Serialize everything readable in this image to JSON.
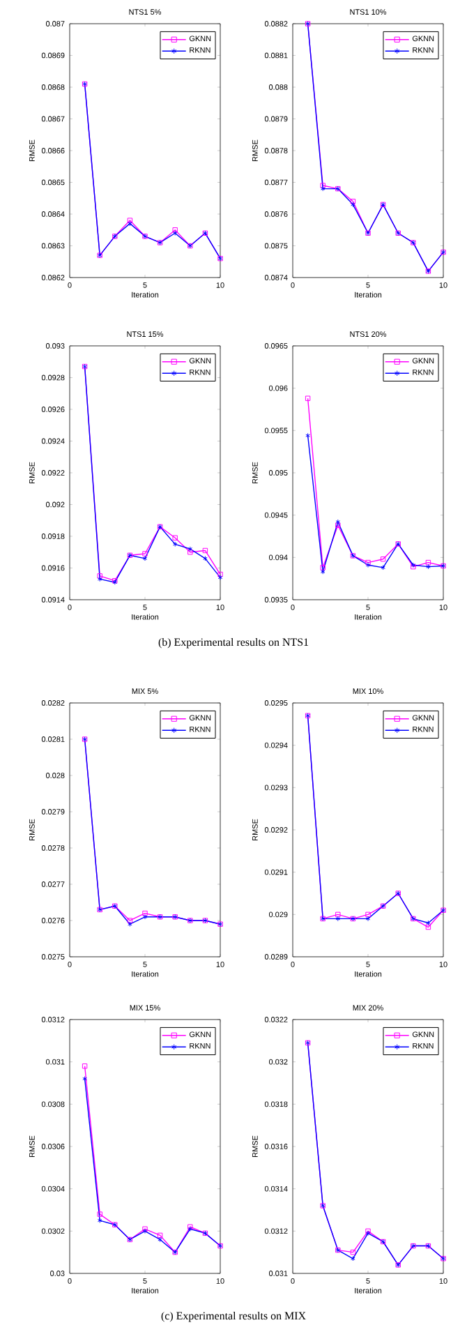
{
  "chart_data": [
    {
      "type": "line",
      "title": "NTS1 5%",
      "xlabel": "Iteration",
      "ylabel": "RMSE",
      "x": [
        1,
        2,
        3,
        4,
        5,
        6,
        7,
        8,
        9,
        10
      ],
      "xlim": [
        0,
        10
      ],
      "xticks": [
        0,
        5,
        10
      ],
      "ylim": [
        0.0862,
        0.087
      ],
      "yticks": [
        0.0862,
        0.0863,
        0.0864,
        0.0865,
        0.0866,
        0.0867,
        0.0868,
        0.0869,
        0.087
      ],
      "legend": "top right",
      "series": [
        {
          "name": "GKNN",
          "color": "#ff00ff",
          "marker": "square",
          "values": [
            0.08681,
            0.08627,
            0.08633,
            0.08638,
            0.08633,
            0.08631,
            0.08635,
            0.0863,
            0.08634,
            0.08626
          ]
        },
        {
          "name": "RKNN",
          "color": "#0000ff",
          "marker": "cross",
          "values": [
            0.08681,
            0.08627,
            0.08633,
            0.08637,
            0.08633,
            0.08631,
            0.08634,
            0.0863,
            0.08634,
            0.08626
          ]
        }
      ]
    },
    {
      "type": "line",
      "title": "NTS1 10%",
      "xlabel": "Iteration",
      "ylabel": "RMSE",
      "x": [
        1,
        2,
        3,
        4,
        5,
        6,
        7,
        8,
        9,
        10
      ],
      "xlim": [
        0,
        10
      ],
      "xticks": [
        0,
        5,
        10
      ],
      "ylim": [
        0.0874,
        0.0882
      ],
      "yticks": [
        0.0874,
        0.0875,
        0.0876,
        0.0877,
        0.0878,
        0.0879,
        0.088,
        0.0881,
        0.0882
      ],
      "legend": "top right",
      "series": [
        {
          "name": "GKNN",
          "color": "#ff00ff",
          "marker": "square",
          "values": [
            0.0882,
            0.08769,
            0.08768,
            0.08764,
            0.08754,
            0.08763,
            0.08754,
            0.08751,
            0.08742,
            0.08748
          ]
        },
        {
          "name": "RKNN",
          "color": "#0000ff",
          "marker": "cross",
          "values": [
            0.0882,
            0.08768,
            0.08768,
            0.08763,
            0.08754,
            0.08763,
            0.08754,
            0.08751,
            0.08742,
            0.08748
          ]
        }
      ]
    },
    {
      "type": "line",
      "title": "NTS1 15%",
      "xlabel": "Iteration",
      "ylabel": "RMSE",
      "x": [
        1,
        2,
        3,
        4,
        5,
        6,
        7,
        8,
        9,
        10
      ],
      "xlim": [
        0,
        10
      ],
      "xticks": [
        0,
        5,
        10
      ],
      "ylim": [
        0.0914,
        0.093
      ],
      "yticks": [
        0.0914,
        0.0916,
        0.0918,
        0.092,
        0.0922,
        0.0924,
        0.0926,
        0.0928,
        0.093
      ],
      "legend": "top right",
      "series": [
        {
          "name": "GKNN",
          "color": "#ff00ff",
          "marker": "square",
          "values": [
            0.09287,
            0.09155,
            0.09152,
            0.09168,
            0.09169,
            0.09186,
            0.09179,
            0.0917,
            0.09171,
            0.09156
          ]
        },
        {
          "name": "RKNN",
          "color": "#0000ff",
          "marker": "cross",
          "values": [
            0.09287,
            0.09153,
            0.09151,
            0.09168,
            0.09166,
            0.09186,
            0.09175,
            0.09172,
            0.09166,
            0.09154
          ]
        }
      ]
    },
    {
      "type": "line",
      "title": "NTS1 20%",
      "xlabel": "Iteration",
      "ylabel": "RMSE",
      "x": [
        1,
        2,
        3,
        4,
        5,
        6,
        7,
        8,
        9,
        10
      ],
      "xlim": [
        0,
        10
      ],
      "xticks": [
        0,
        5,
        10
      ],
      "ylim": [
        0.0935,
        0.0965
      ],
      "yticks": [
        0.0935,
        0.094,
        0.0945,
        0.095,
        0.0955,
        0.096,
        0.0965
      ],
      "legend": "top right",
      "annotations": [
        "(b) Experimental results on NTS1"
      ],
      "series": [
        {
          "name": "GKNN",
          "color": "#ff00ff",
          "marker": "square",
          "values": [
            0.09588,
            0.09388,
            0.09438,
            0.09402,
            0.09394,
            0.09398,
            0.09416,
            0.09389,
            0.09394,
            0.0939
          ]
        },
        {
          "name": "RKNN",
          "color": "#0000ff",
          "marker": "cross",
          "values": [
            0.09544,
            0.09383,
            0.09442,
            0.09402,
            0.09391,
            0.09388,
            0.09416,
            0.09391,
            0.09389,
            0.0939
          ]
        }
      ]
    },
    {
      "type": "line",
      "title": "MIX 5%",
      "xlabel": "Iteration",
      "ylabel": "RMSE",
      "x": [
        1,
        2,
        3,
        4,
        5,
        6,
        7,
        8,
        9,
        10
      ],
      "xlim": [
        0,
        10
      ],
      "xticks": [
        0,
        5,
        10
      ],
      "ylim": [
        0.0275,
        0.0282
      ],
      "yticks": [
        0.0275,
        0.0276,
        0.0277,
        0.0278,
        0.0279,
        0.028,
        0.0281,
        0.0282
      ],
      "legend": "top right",
      "series": [
        {
          "name": "GKNN",
          "color": "#ff00ff",
          "marker": "square",
          "values": [
            0.0281,
            0.02763,
            0.02764,
            0.0276,
            0.02762,
            0.02761,
            0.02761,
            0.0276,
            0.0276,
            0.02759
          ]
        },
        {
          "name": "RKNN",
          "color": "#0000ff",
          "marker": "cross",
          "values": [
            0.0281,
            0.02763,
            0.02764,
            0.02759,
            0.02761,
            0.02761,
            0.02761,
            0.0276,
            0.0276,
            0.02759
          ]
        }
      ]
    },
    {
      "type": "line",
      "title": "MIX 10%",
      "xlabel": "Iteration",
      "ylabel": "RMSE",
      "x": [
        1,
        2,
        3,
        4,
        5,
        6,
        7,
        8,
        9,
        10
      ],
      "xlim": [
        0,
        10
      ],
      "xticks": [
        0,
        5,
        10
      ],
      "ylim": [
        0.0289,
        0.0295
      ],
      "yticks": [
        0.0289,
        0.029,
        0.0291,
        0.0292,
        0.0293,
        0.0294,
        0.0295
      ],
      "legend": "top right",
      "series": [
        {
          "name": "GKNN",
          "color": "#ff00ff",
          "marker": "square",
          "values": [
            0.02947,
            0.02899,
            0.029,
            0.02899,
            0.029,
            0.02902,
            0.02905,
            0.02899,
            0.02897,
            0.02901
          ]
        },
        {
          "name": "RKNN",
          "color": "#0000ff",
          "marker": "cross",
          "values": [
            0.02947,
            0.02899,
            0.02899,
            0.02899,
            0.02899,
            0.02902,
            0.02905,
            0.02899,
            0.02898,
            0.02901
          ]
        }
      ]
    },
    {
      "type": "line",
      "title": "MIX 15%",
      "xlabel": "Iteration",
      "ylabel": "RMSE",
      "x": [
        1,
        2,
        3,
        4,
        5,
        6,
        7,
        8,
        9,
        10
      ],
      "xlim": [
        0,
        10
      ],
      "xticks": [
        0,
        5,
        10
      ],
      "ylim": [
        0.03,
        0.0312
      ],
      "yticks": [
        0.03,
        0.0302,
        0.0304,
        0.0306,
        0.0308,
        0.031,
        0.0312
      ],
      "legend": "top right",
      "series": [
        {
          "name": "GKNN",
          "color": "#ff00ff",
          "marker": "square",
          "values": [
            0.03098,
            0.03028,
            0.03023,
            0.03016,
            0.03021,
            0.03018,
            0.0301,
            0.03022,
            0.03019,
            0.03013
          ]
        },
        {
          "name": "RKNN",
          "color": "#0000ff",
          "marker": "cross",
          "values": [
            0.03092,
            0.03025,
            0.03023,
            0.03016,
            0.0302,
            0.03016,
            0.0301,
            0.03021,
            0.03019,
            0.03013
          ]
        }
      ]
    },
    {
      "type": "line",
      "title": "MIX 20%",
      "xlabel": "Iteration",
      "ylabel": "RMSE",
      "x": [
        1,
        2,
        3,
        4,
        5,
        6,
        7,
        8,
        9,
        10
      ],
      "xlim": [
        0,
        10
      ],
      "xticks": [
        0,
        5,
        10
      ],
      "ylim": [
        0.031,
        0.0322
      ],
      "yticks": [
        0.031,
        0.0312,
        0.0314,
        0.0316,
        0.0318,
        0.032,
        0.0322
      ],
      "legend": "top right",
      "annotations": [
        "(c) Experimental results on MIX"
      ],
      "series": [
        {
          "name": "GKNN",
          "color": "#ff00ff",
          "marker": "square",
          "values": [
            0.03209,
            0.03132,
            0.03111,
            0.0311,
            0.0312,
            0.03115,
            0.03104,
            0.03113,
            0.03113,
            0.03107
          ]
        },
        {
          "name": "RKNN",
          "color": "#0000ff",
          "marker": "cross",
          "values": [
            0.03209,
            0.03132,
            0.03111,
            0.03107,
            0.03119,
            0.03115,
            0.03104,
            0.03113,
            0.03113,
            0.03107
          ]
        }
      ]
    }
  ]
}
